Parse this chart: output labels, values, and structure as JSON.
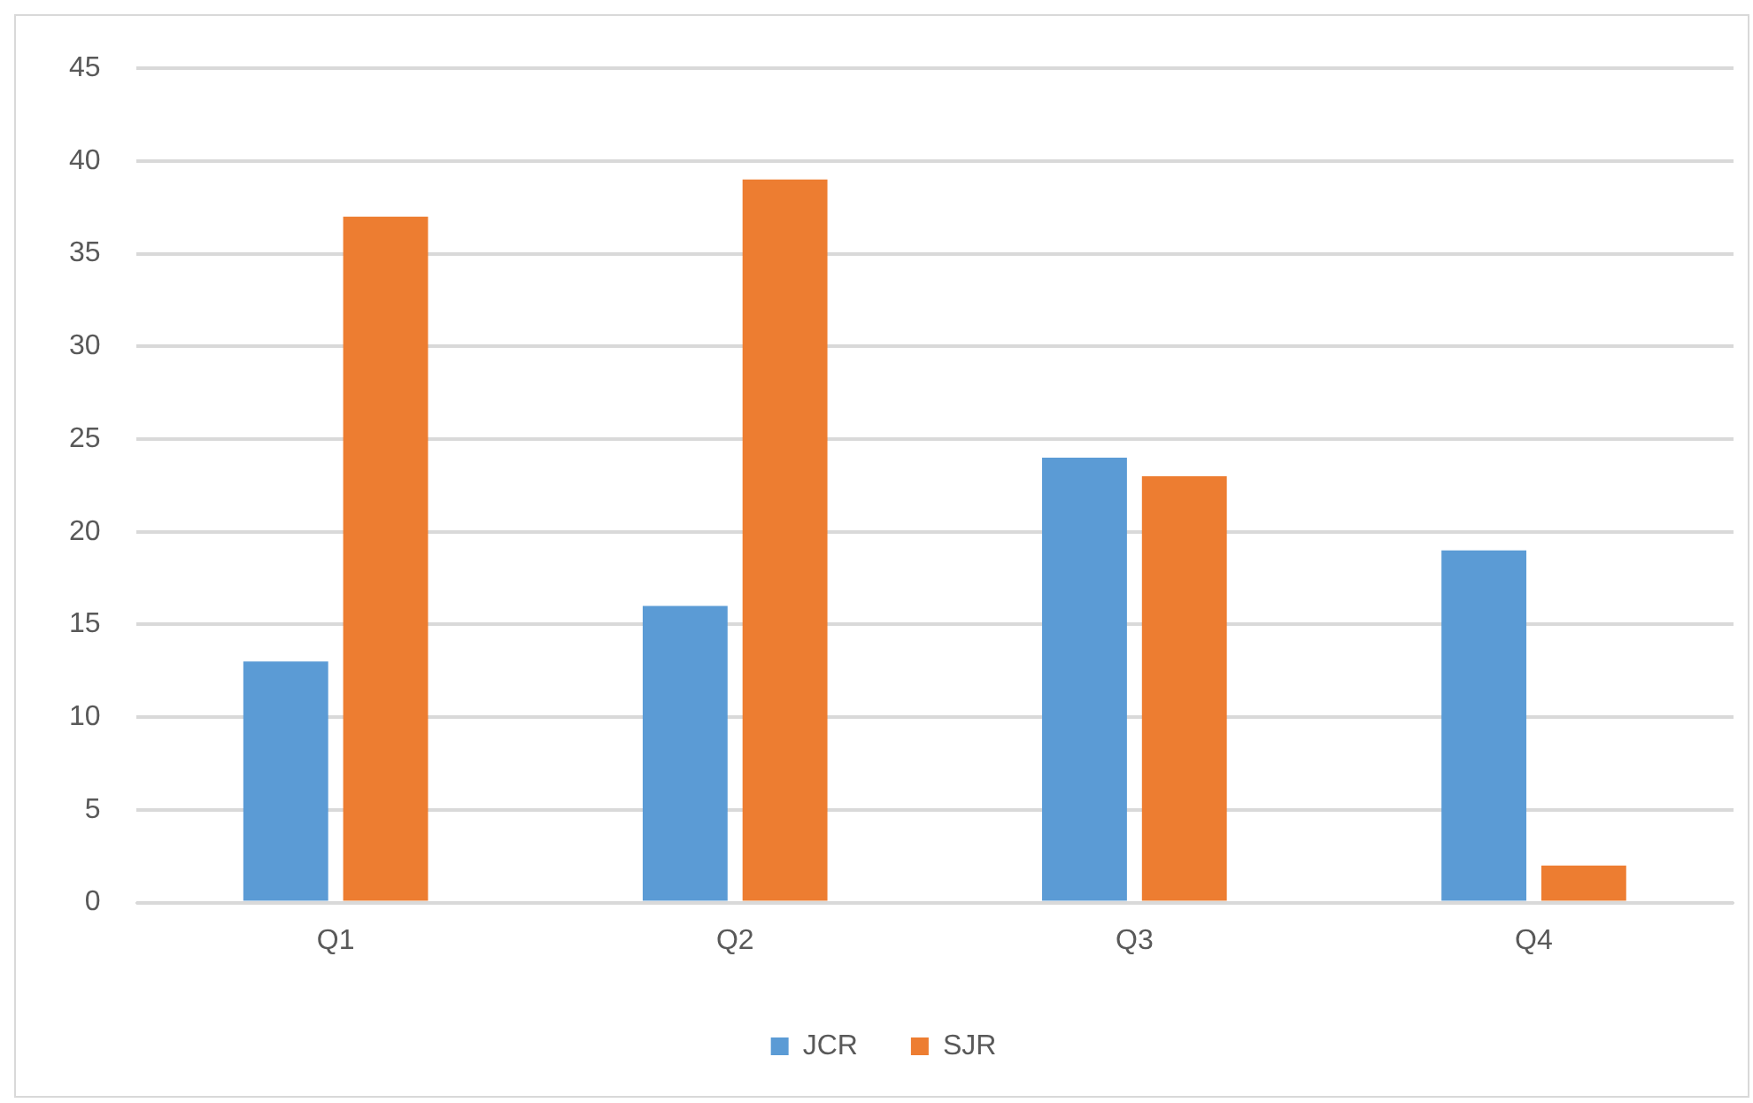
{
  "chart_data": {
    "type": "bar",
    "categories": [
      "Q1",
      "Q2",
      "Q3",
      "Q4"
    ],
    "series": [
      {
        "name": "JCR",
        "color": "#5b9bd5",
        "values": [
          13,
          16,
          24,
          19
        ]
      },
      {
        "name": "SJR",
        "color": "#ed7d31",
        "values": [
          37,
          39,
          23,
          2
        ]
      }
    ],
    "ylim": [
      0,
      45
    ],
    "yticks": [
      0,
      5,
      10,
      15,
      20,
      25,
      30,
      35,
      40,
      45
    ],
    "grid": "y",
    "legend": "bottom"
  }
}
